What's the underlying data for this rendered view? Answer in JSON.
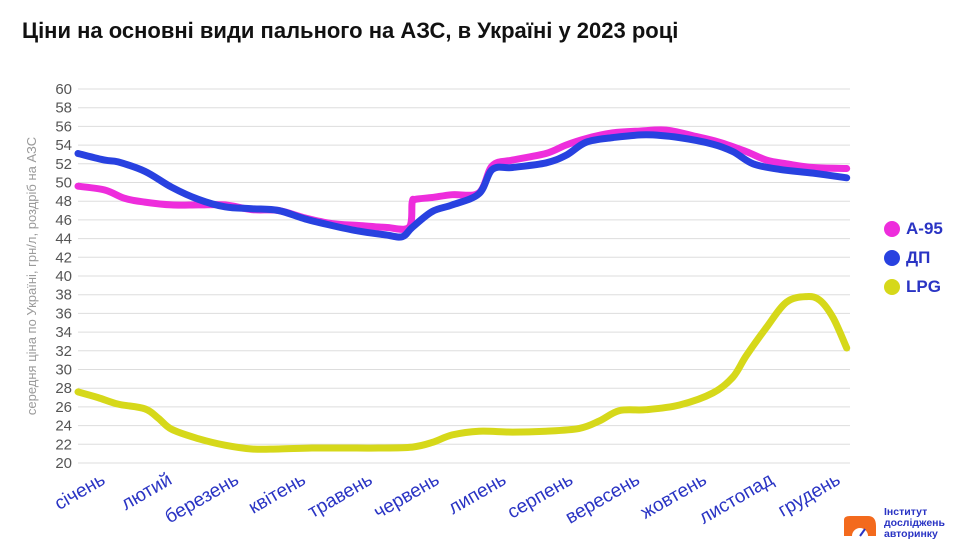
{
  "title": "Ціни на основні види пального на АЗС, в Україні у 2023 році",
  "logo": {
    "lines": [
      "Інститут",
      "досліджень",
      "авторинку"
    ]
  },
  "colors": {
    "a95": "#ee2ddc",
    "dp": "#2841e0",
    "lpg": "#d6d81a",
    "axis_text": "#2a34c4",
    "grid": "#dddddd"
  },
  "chart_data": {
    "type": "line",
    "title": "Ціни на основні види пального на АЗС, в Україні у 2023 році",
    "ylabel": "середня ціна по Україні, грн/л, роздріб на АЗС",
    "xlabel": "",
    "ylim": [
      20,
      60
    ],
    "yticks": [
      20,
      22,
      24,
      26,
      28,
      30,
      32,
      34,
      36,
      38,
      40,
      42,
      44,
      46,
      48,
      50,
      52,
      54,
      56,
      58,
      60
    ],
    "categories": [
      "січень",
      "лютий",
      "березень",
      "квітень",
      "травень",
      "червень",
      "липень",
      "серпень",
      "вересень",
      "жовтень",
      "листопад",
      "грудень"
    ],
    "xlim": [
      0,
      11.55
    ],
    "grid": true,
    "legend_position": "right",
    "series": [
      {
        "name": "А-95",
        "color": "#ee2ddc",
        "x": [
          0,
          0.4,
          0.7,
          1.0,
          1.4,
          1.8,
          2.2,
          2.6,
          3.0,
          3.4,
          3.8,
          4.2,
          4.6,
          4.95,
          5.0,
          5.05,
          5.3,
          5.6,
          6.0,
          6.2,
          6.5,
          7.0,
          7.3,
          7.6,
          8.0,
          8.4,
          8.8,
          9.2,
          9.6,
          10.0,
          10.3,
          10.6,
          11.0,
          11.5
        ],
        "y": [
          49.6,
          49.2,
          48.3,
          47.9,
          47.6,
          47.6,
          47.6,
          47.1,
          47.0,
          46.2,
          45.6,
          45.4,
          45.2,
          45.2,
          47.9,
          48.2,
          48.4,
          48.7,
          48.9,
          51.8,
          52.4,
          53.1,
          54.0,
          54.7,
          55.3,
          55.5,
          55.6,
          55.0,
          54.3,
          53.3,
          52.4,
          52.0,
          51.6,
          51.5
        ]
      },
      {
        "name": "ДП",
        "color": "#2841e0",
        "x": [
          0,
          0.4,
          0.6,
          1.0,
          1.4,
          1.8,
          2.2,
          2.6,
          3.0,
          3.4,
          3.8,
          4.2,
          4.6,
          4.85,
          5.0,
          5.3,
          5.6,
          6.0,
          6.2,
          6.5,
          7.0,
          7.3,
          7.6,
          8.0,
          8.5,
          9.0,
          9.5,
          9.8,
          10.1,
          10.5,
          11.0,
          11.5
        ],
        "y": [
          53.1,
          52.4,
          52.2,
          51.2,
          49.5,
          48.2,
          47.4,
          47.2,
          47.0,
          46.1,
          45.4,
          44.8,
          44.4,
          44.2,
          45.2,
          46.9,
          47.6,
          48.8,
          51.4,
          51.6,
          52.1,
          52.9,
          54.3,
          54.8,
          55.1,
          54.8,
          54.1,
          53.3,
          52.0,
          51.4,
          51.0,
          50.5
        ]
      },
      {
        "name": "LPG",
        "color": "#d6d81a",
        "x": [
          0,
          0.3,
          0.6,
          1.0,
          1.2,
          1.4,
          1.8,
          2.2,
          2.6,
          3.0,
          3.5,
          4.0,
          4.5,
          5.0,
          5.3,
          5.6,
          6.0,
          6.5,
          7.0,
          7.5,
          7.8,
          8.1,
          8.5,
          9.0,
          9.5,
          9.8,
          10.0,
          10.3,
          10.6,
          10.9,
          11.1,
          11.3,
          11.5
        ],
        "y": [
          27.6,
          27.0,
          26.3,
          25.8,
          24.8,
          23.6,
          22.6,
          21.9,
          21.5,
          21.5,
          21.6,
          21.6,
          21.6,
          21.7,
          22.2,
          23.0,
          23.4,
          23.3,
          23.4,
          23.7,
          24.5,
          25.6,
          25.7,
          26.2,
          27.5,
          29.2,
          31.5,
          34.5,
          37.2,
          37.8,
          37.4,
          35.5,
          32.3
        ]
      }
    ]
  }
}
